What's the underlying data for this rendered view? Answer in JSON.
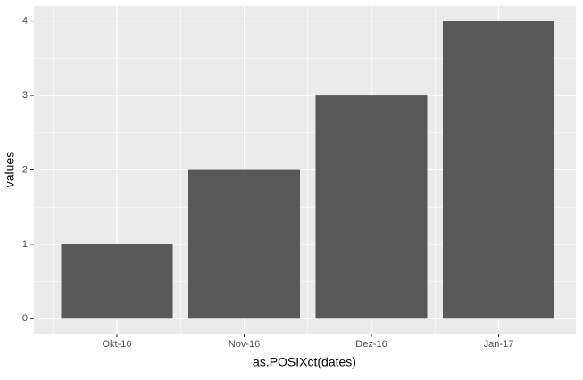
{
  "chart_data": {
    "type": "bar",
    "x_label": "as.POSIXct(dates)",
    "y_label": "values",
    "categories": [
      "Okt-16",
      "Nov-16",
      "Dez-16",
      "Jan-17"
    ],
    "values": [
      1,
      2,
      3,
      4
    ],
    "color": "#595959",
    "ylim": [
      -0.2,
      4.2
    ],
    "yticks": [
      0,
      1,
      2,
      3,
      4
    ],
    "grid": true
  }
}
